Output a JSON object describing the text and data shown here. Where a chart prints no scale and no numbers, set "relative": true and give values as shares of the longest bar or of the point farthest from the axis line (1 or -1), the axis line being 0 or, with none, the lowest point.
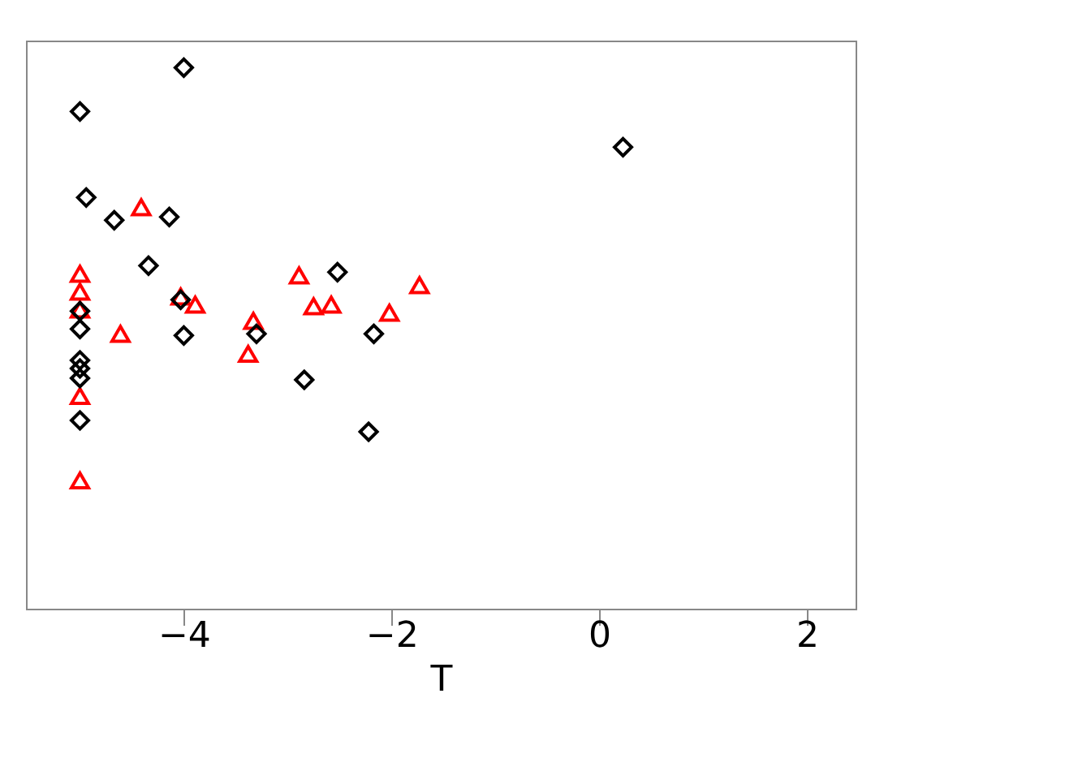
{
  "chart_data": {
    "type": "scatter",
    "xlabel": "T",
    "xlim": [
      -5.52,
      2.47
    ],
    "xticks": [
      -4,
      -2,
      0,
      2
    ],
    "relative": true,
    "tick_labels": "x",
    "series": [
      {
        "color": "#000000",
        "marker": "diamond",
        "x": [
          -4.0,
          -5.0,
          -4.94,
          -4.67,
          -4.14,
          -4.34,
          -2.52,
          0.23,
          -5.0,
          -5.0,
          -5.0,
          -5.0,
          -5.0,
          -5.0,
          -4.0,
          -3.3,
          -2.84,
          -2.17,
          -2.22,
          -4.03
        ],
        "values": [
          1.0,
          0.919,
          0.76,
          0.718,
          0.724,
          0.634,
          0.622,
          0.853,
          0.55,
          0.517,
          0.459,
          0.444,
          0.426,
          0.348,
          0.505,
          0.508,
          0.423,
          0.508,
          0.327,
          0.571
        ]
      },
      {
        "color": "#ff0000",
        "marker": "triangle",
        "x": [
          -5.0,
          -5.0,
          -5.0,
          -5.0,
          -5.0,
          -4.61,
          -4.41,
          -4.03,
          -3.89,
          -3.33,
          -3.38,
          -2.89,
          -2.75,
          -2.58,
          -2.02,
          -1.73
        ],
        "values": [
          0.619,
          0.586,
          0.553,
          0.393,
          0.237,
          0.508,
          0.742,
          0.577,
          0.562,
          0.532,
          0.471,
          0.616,
          0.559,
          0.562,
          0.547,
          0.598
        ]
      }
    ]
  }
}
